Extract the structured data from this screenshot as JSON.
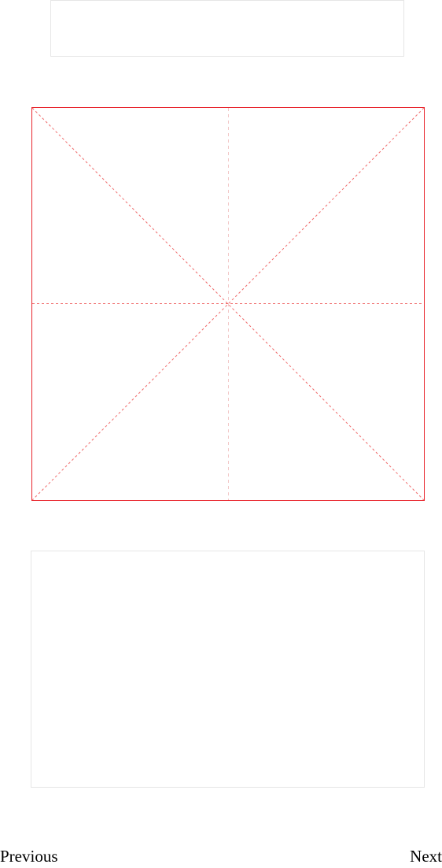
{
  "navigation": {
    "previous_label": "Previous",
    "next_label": "Next"
  },
  "colors": {
    "grid_border": "#e8232b",
    "grid_guides": "#f06a6a",
    "grid_vertical_guide": "#f3c9c9",
    "panel_border": "#e6e6e6"
  }
}
